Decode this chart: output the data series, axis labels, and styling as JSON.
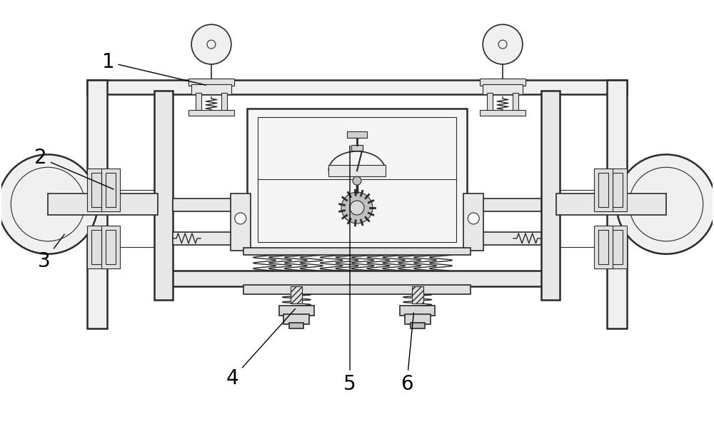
{
  "background_color": "#ffffff",
  "line_color": "#2a2a2a",
  "figsize": [
    10.0,
    5.91
  ],
  "dpi": 100,
  "label_fontsize": 20
}
